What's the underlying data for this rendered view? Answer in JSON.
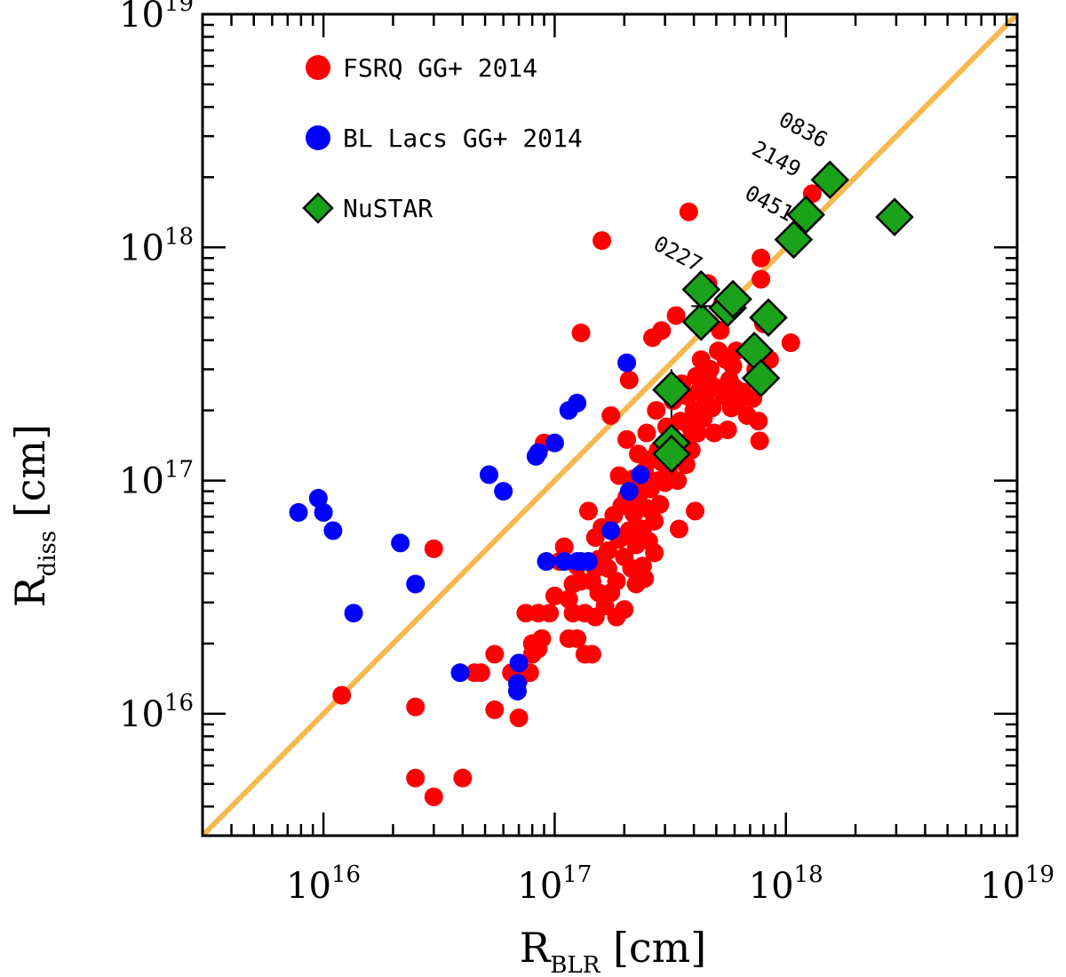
{
  "chart_data": {
    "type": "scatter",
    "log_x": true,
    "log_y": true,
    "xlim": [
      3000000000000000.0,
      1e+19
    ],
    "ylim": [
      3000000000000000.0,
      1e+19
    ],
    "xlabel": {
      "main": "R",
      "sub": "BLR",
      "unit": " [cm]"
    },
    "ylabel": {
      "main": "R",
      "sub": "diss",
      "unit": " [cm]"
    },
    "x_ticks": [
      {
        "base": "10",
        "exp": "16",
        "value": 1e+16
      },
      {
        "base": "10",
        "exp": "17",
        "value": 1e+17
      },
      {
        "base": "10",
        "exp": "18",
        "value": 1e+18
      },
      {
        "base": "10",
        "exp": "19",
        "value": 1e+19
      }
    ],
    "y_ticks": [
      {
        "base": "10",
        "exp": "16",
        "value": 1e+16
      },
      {
        "base": "10",
        "exp": "17",
        "value": 1e+17
      },
      {
        "base": "10",
        "exp": "18",
        "value": 1e+18
      },
      {
        "base": "10",
        "exp": "19",
        "value": 1e+19
      }
    ],
    "grid": false,
    "legend_position": "top-left",
    "reference_line": {
      "kind": "y=x",
      "color": "#f7b84e"
    },
    "series": [
      {
        "name": "FSRQ GG+ 2014",
        "marker": "circle",
        "color": "#ff0000",
        "points": [
          [
            1.2e+16,
            1.2e+16
          ],
          [
            2.5e+16,
            1.07e+16
          ],
          [
            2.5e+16,
            5300000000000000.0
          ],
          [
            3e+16,
            4400000000000000.0
          ],
          [
            4e+16,
            5300000000000000.0
          ],
          [
            3e+16,
            5.1e+16
          ],
          [
            4.5e+16,
            1.5e+16
          ],
          [
            4.8e+16,
            1.5e+16
          ],
          [
            5.5e+16,
            1.8e+16
          ],
          [
            5.5e+16,
            1.04e+16
          ],
          [
            6.5e+16,
            1.5e+16
          ],
          [
            7e+16,
            9600000000000000.0
          ],
          [
            7e+16,
            1.4e+16
          ],
          [
            7.8e+16,
            1.5e+16
          ],
          [
            7.5e+16,
            2.7e+16
          ],
          [
            8e+16,
            1.8e+16
          ],
          [
            8.5e+16,
            1.9e+16
          ],
          [
            8.5e+16,
            2.7e+16
          ],
          [
            8.8e+16,
            2.1e+16
          ],
          [
            9.5e+16,
            2.7e+16
          ],
          [
            1e+17,
            3.2e+16
          ],
          [
            1.05e+17,
            4.5e+16
          ],
          [
            1.1e+17,
            5.2e+16
          ],
          [
            1.15e+17,
            3.1e+16
          ],
          [
            1.15e+17,
            2.1e+16
          ],
          [
            1.2e+17,
            2.7e+16
          ],
          [
            1.2e+17,
            3.6e+16
          ],
          [
            1.25e+17,
            4.3e+16
          ],
          [
            1.25e+17,
            2.1e+16
          ],
          [
            1.3e+17,
            3.7e+16
          ],
          [
            1.35e+17,
            2.7e+16
          ],
          [
            1.35e+17,
            1.8e+16
          ],
          [
            1.4e+17,
            7.4e+16
          ],
          [
            1.45e+17,
            3.7e+16
          ],
          [
            1.45e+17,
            1.8e+16
          ],
          [
            1.5e+17,
            4.2e+16
          ],
          [
            1.5e+17,
            2.6e+16
          ],
          [
            1.55e+17,
            3.3e+16
          ],
          [
            1.6e+17,
            6.3e+16
          ],
          [
            1.6e+17,
            1.07e+18
          ],
          [
            1.65e+17,
            2.9e+16
          ],
          [
            1.7e+17,
            5e+16
          ],
          [
            1.7e+17,
            4.2e+16
          ],
          [
            1.75e+17,
            3.3e+16
          ],
          [
            1.75e+17,
            1.9e+17
          ],
          [
            1.8e+17,
            7.1e+16
          ],
          [
            1.85e+17,
            3.7e+16
          ],
          [
            1.9e+17,
            1.05e+17
          ],
          [
            1.9e+17,
            5.6e+16
          ],
          [
            1.95e+17,
            7.8e+16
          ],
          [
            2e+17,
            4.7e+16
          ],
          [
            2e+17,
            2.8e+16
          ],
          [
            2.05e+17,
            1.5e+17
          ],
          [
            2.05e+17,
            8.5e+16
          ],
          [
            2.1e+17,
            6.1e+16
          ],
          [
            2.1e+17,
            2.7e+17
          ],
          [
            2.15e+17,
            4.2e+16
          ],
          [
            2.2e+17,
            1.02e+17
          ],
          [
            2.2e+17,
            7.2e+16
          ],
          [
            2.25e+17,
            5.3e+16
          ],
          [
            2.25e+17,
            3.6e+16
          ],
          [
            2.3e+17,
            1.3e+17
          ],
          [
            2.35e+17,
            8.9e+16
          ],
          [
            2.4e+17,
            6.2e+16
          ],
          [
            2.4e+17,
            4.3e+16
          ],
          [
            2.45e+17,
            1.1e+17
          ],
          [
            2.5e+17,
            1.6e+17
          ],
          [
            2.5e+17,
            7.6e+16
          ],
          [
            2.55e+17,
            5.5e+16
          ],
          [
            2.6e+17,
            1.23e+17
          ],
          [
            2.6e+17,
            9.2e+16
          ],
          [
            2.65e+17,
            4.1e+17
          ],
          [
            2.7e+17,
            6.7e+16
          ],
          [
            2.7e+17,
            4.9e+16
          ],
          [
            2.75e+17,
            2e+17
          ],
          [
            2.8e+17,
            1.35e+17
          ],
          [
            2.8e+17,
            1e+17
          ],
          [
            2.85e+17,
            7.9e+16
          ],
          [
            2.9e+17,
            4.4e+17
          ],
          [
            2.9e+17,
            1.2e+17
          ],
          [
            3e+17,
            9.8e+16
          ],
          [
            3.05e+17,
            1.7e+17
          ],
          [
            3.1e+17,
            1.1e+17
          ],
          [
            3.2e+17,
            1.55e+17
          ],
          [
            3.25e+17,
            2.2e+17
          ],
          [
            3.3e+17,
            1.3e+17
          ],
          [
            3.35e+17,
            5.1e+17
          ],
          [
            3.4e+17,
            1e+17
          ],
          [
            3.45e+17,
            6.2e+16
          ],
          [
            3.5e+17,
            1.8e+17
          ],
          [
            3.55e+17,
            2.6e+17
          ],
          [
            3.6e+17,
            1.45e+17
          ],
          [
            3.7e+17,
            1.17e+17
          ],
          [
            3.75e+17,
            2.3e+17
          ],
          [
            3.8e+17,
            1.42e+18
          ],
          [
            3.85e+17,
            1.7e+17
          ],
          [
            3.9e+17,
            1.35e+17
          ],
          [
            4e+17,
            2e+17
          ],
          [
            4.05e+17,
            7.4e+16
          ],
          [
            4.1e+17,
            2.8e+17
          ],
          [
            4.15e+17,
            1.6e+17
          ],
          [
            4.2e+17,
            2.4e+17
          ],
          [
            4.3e+17,
            3.3e+17
          ],
          [
            4.4e+17,
            1.85e+17
          ],
          [
            4.5e+17,
            2.2e+17
          ],
          [
            4.6e+17,
            2.7e+17
          ],
          [
            4.6e+17,
            7e+17
          ],
          [
            4.7e+17,
            3e+17
          ],
          [
            4.8e+17,
            2.05e+17
          ],
          [
            4.9e+17,
            1.6e+17
          ],
          [
            5e+17,
            2.5e+17
          ],
          [
            5.1e+17,
            3.6e+17
          ],
          [
            5.2e+17,
            4.4e+17
          ],
          [
            5.3e+17,
            5.7e+17
          ],
          [
            5.4e+17,
            2.3e+17
          ],
          [
            5.5e+17,
            3.3e+17
          ],
          [
            5.6e+17,
            1.65e+17
          ],
          [
            5.7e+17,
            2.7e+17
          ],
          [
            5.8e+17,
            2.05e+17
          ],
          [
            5.9e+17,
            3.1e+17
          ],
          [
            6e+17,
            2.5e+17
          ],
          [
            6.1e+17,
            3.6e+17
          ],
          [
            6.2e+17,
            2.15e+17
          ],
          [
            6.5e+17,
            2.4e+17
          ],
          [
            6.8e+17,
            1.9e+17
          ],
          [
            7.2e+17,
            2.25e+17
          ],
          [
            7.4e+17,
            3e+17
          ],
          [
            7.6e+17,
            1.8e+17
          ],
          [
            7.7e+17,
            1.48e+17
          ],
          [
            7.8e+17,
            7.3e+17
          ],
          [
            7.8e+17,
            9e+17
          ],
          [
            8e+17,
            4.7e+17
          ],
          [
            8.5e+17,
            3.3e+17
          ],
          [
            1.05e+18,
            3.9e+17
          ],
          [
            1.3e+18,
            1.7e+18
          ],
          [
            1.1e+17,
            4.5e+16
          ],
          [
            1.25e+17,
            4.4e+16
          ],
          [
            1.3e+17,
            4.3e+17
          ],
          [
            1.5e+17,
            5.7e+16
          ],
          [
            1.55e+17,
            4.6e+16
          ],
          [
            2.3e+17,
            8e+16
          ],
          [
            1.85e+17,
            2.6e+16
          ],
          [
            9e+16,
            1.45e+17
          ],
          [
            8e+16,
            2e+16
          ],
          [
            2.45e+17,
            3.8e+16
          ]
        ]
      },
      {
        "name": "BL Lacs GG+ 2014",
        "marker": "circle",
        "color": "#0000ff",
        "points": [
          [
            7800000000000000.0,
            7.3e+16
          ],
          [
            9500000000000000.0,
            8.4e+16
          ],
          [
            1e+16,
            7.3e+16
          ],
          [
            1.1e+16,
            6.1e+16
          ],
          [
            1.35e+16,
            2.7e+16
          ],
          [
            2.15e+16,
            5.4e+16
          ],
          [
            2.5e+16,
            3.6e+16
          ],
          [
            3.9e+16,
            1.5e+16
          ],
          [
            5.2e+16,
            1.06e+17
          ],
          [
            6e+16,
            9e+16
          ],
          [
            6.9e+16,
            1.25e+16
          ],
          [
            6.9e+16,
            1.35e+16
          ],
          [
            7e+16,
            1.65e+16
          ],
          [
            8.3e+16,
            1.27e+17
          ],
          [
            8.5e+16,
            1.32e+17
          ],
          [
            9.2e+16,
            4.5e+16
          ],
          [
            1e+17,
            1.45e+17
          ],
          [
            1.1e+17,
            4.5e+16
          ],
          [
            1.15e+17,
            2e+17
          ],
          [
            1.25e+17,
            2.15e+17
          ],
          [
            1.25e+17,
            4.5e+16
          ],
          [
            1.3e+17,
            4.5e+16
          ],
          [
            1.4e+17,
            4.5e+16
          ],
          [
            1.75e+17,
            6.1e+16
          ],
          [
            2.05e+17,
            3.2e+17
          ],
          [
            2.1e+17,
            9e+16
          ],
          [
            2.35e+17,
            1.06e+17
          ]
        ]
      },
      {
        "name": "NuSTAR",
        "marker": "diamond",
        "color": "#1aa31a",
        "points": [
          [
            3.2e+17,
            2.45e+17
          ],
          [
            3.2e+17,
            1.45e+17
          ],
          [
            3.2e+17,
            1.3e+17
          ],
          [
            4.3e+17,
            4.8e+17
          ],
          [
            4.3e+17,
            6.6e+17
          ],
          [
            5.6e+17,
            5.5e+17
          ],
          [
            5.9e+17,
            6e+17
          ],
          [
            7.3e+17,
            3.6e+17
          ],
          [
            7.8e+17,
            2.75e+17
          ],
          [
            8.4e+17,
            5e+17
          ],
          [
            1.08e+18,
            1.08e+18
          ],
          [
            1.22e+18,
            1.38e+18
          ],
          [
            1.55e+18,
            1.95e+18
          ],
          [
            2.95e+18,
            1.35e+18
          ]
        ],
        "error_bars": [
          {
            "x": 3.2e+17,
            "ylow": 1.3e+17,
            "yhigh": 3e+17
          },
          {
            "x": 4.3e+17,
            "ylow": 4.8e+17,
            "yhigh": 6.6e+17
          },
          {
            "y": 5.6e+17,
            "xlow": 3.9e+17,
            "xhigh": 4.9e+17
          }
        ]
      }
    ],
    "annotations": [
      {
        "text": "0836",
        "x": 1.15e+18,
        "y": 3e+18,
        "rotate": 28
      },
      {
        "text": "2149",
        "x": 8.8e+17,
        "y": 2.25e+18,
        "rotate": 28
      },
      {
        "text": "0451",
        "x": 8.2e+17,
        "y": 1.45e+18,
        "rotate": 28
      },
      {
        "text": "0227",
        "x": 3.3e+17,
        "y": 8.8e+17,
        "rotate": 28
      }
    ],
    "legend": [
      {
        "label": "FSRQ GG+ 2014",
        "marker": "circle",
        "color": "#ff0000"
      },
      {
        "label": "BL Lacs GG+ 2014",
        "marker": "circle",
        "color": "#0000ff"
      },
      {
        "label": "NuSTAR",
        "marker": "diamond",
        "color": "#1aa31a"
      }
    ]
  }
}
